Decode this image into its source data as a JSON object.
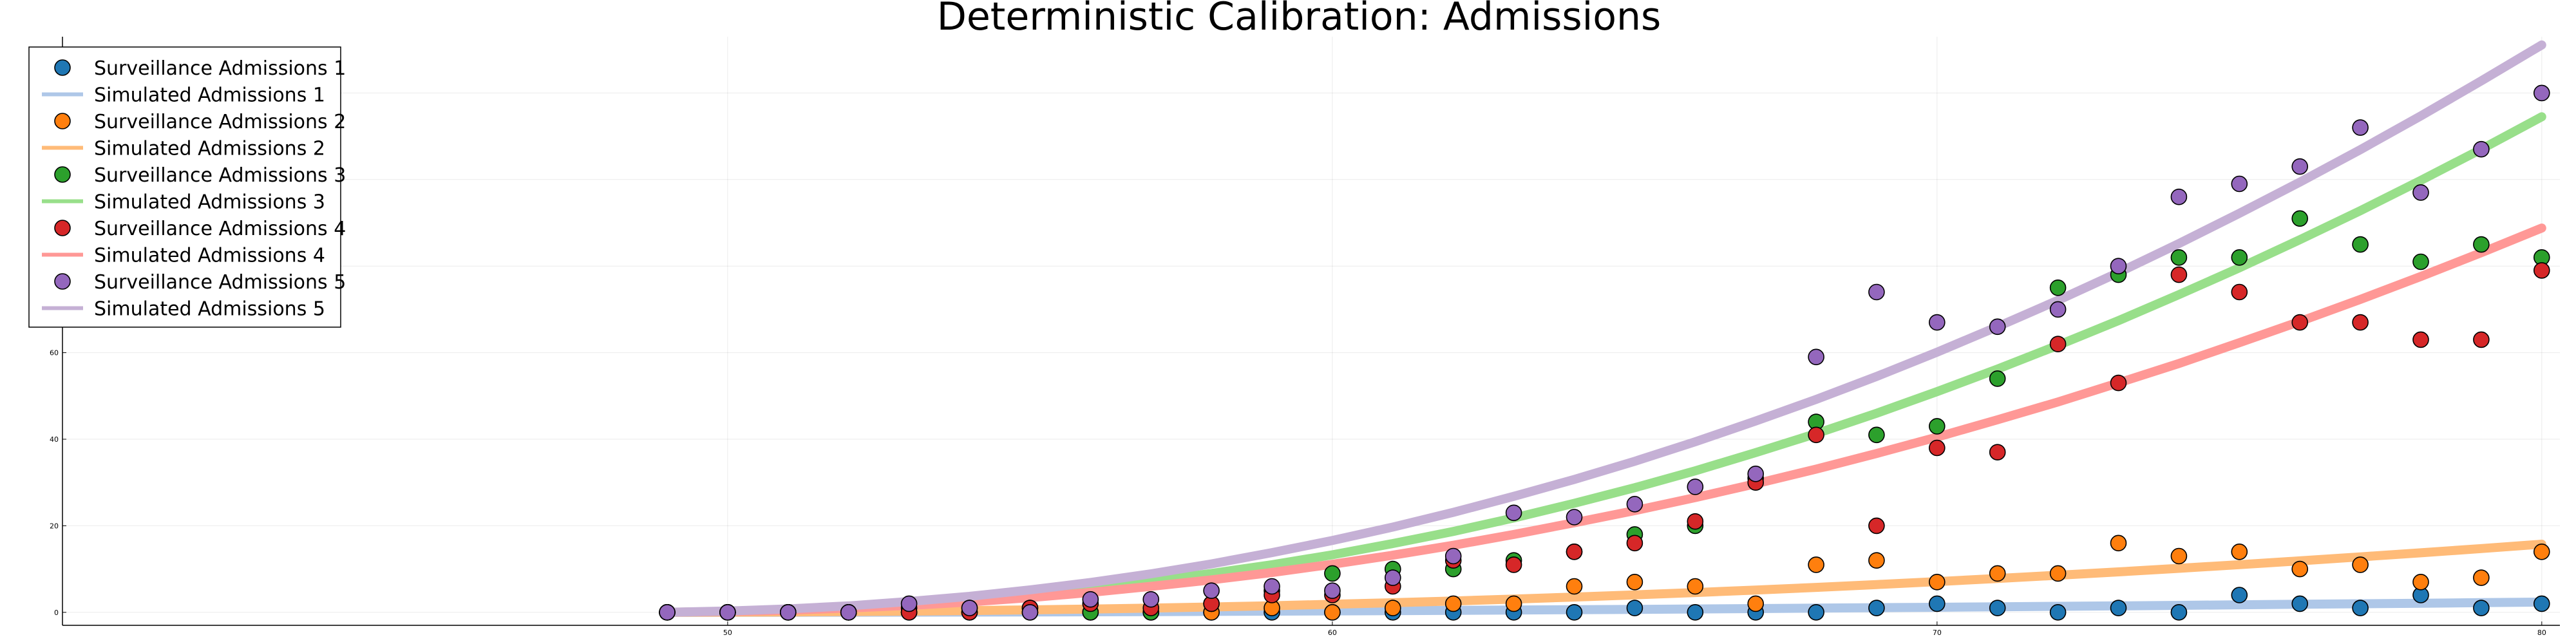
{
  "chart_data": {
    "type": "scatter",
    "title": "Deterministic Calibration: Admissions",
    "xlabel": "",
    "ylabel": "",
    "xlim": [
      39,
      80.3
    ],
    "ylim": [
      -3,
      133
    ],
    "x_ticks": [
      50,
      60,
      70,
      80
    ],
    "y_ticks": [
      0,
      20,
      40,
      60,
      80,
      100,
      120
    ],
    "grid": true,
    "legend_position": "top-left",
    "x": [
      49,
      50,
      51,
      52,
      53,
      54,
      55,
      56,
      57,
      58,
      59,
      60,
      61,
      62,
      63,
      64,
      65,
      66,
      67,
      68,
      69,
      70,
      71,
      72,
      73,
      74,
      75,
      76,
      77,
      78,
      79,
      80
    ],
    "series": [
      {
        "name": "Surveillance Admissions 1",
        "kind": "scatter",
        "color": "#1f77b4",
        "y": [
          0,
          0,
          0,
          0,
          0,
          0,
          0,
          0,
          0,
          0,
          0,
          0,
          0,
          0,
          0,
          0,
          1,
          0,
          0,
          0,
          1,
          2,
          1,
          0,
          1,
          0,
          4,
          2,
          1,
          4,
          1,
          2
        ]
      },
      {
        "name": "Simulated Admissions 1",
        "kind": "line",
        "color": "#aec7e8",
        "y": [
          0,
          0.01,
          0.02,
          0.03,
          0.05,
          0.07,
          0.1,
          0.13,
          0.17,
          0.22,
          0.27,
          0.33,
          0.39,
          0.46,
          0.53,
          0.61,
          0.69,
          0.78,
          0.87,
          0.97,
          1.07,
          1.17,
          1.28,
          1.39,
          1.5,
          1.62,
          1.74,
          1.86,
          1.98,
          2.11,
          2.24,
          2.37
        ]
      },
      {
        "name": "Surveillance Admissions 2",
        "kind": "scatter",
        "color": "#ff7f0e",
        "y": [
          0,
          0,
          0,
          0,
          0,
          1,
          0,
          0,
          0,
          0,
          1,
          0,
          1,
          2,
          2,
          6,
          7,
          6,
          2,
          11,
          12,
          7,
          9,
          9,
          16,
          13,
          14,
          10,
          11,
          7,
          8,
          14
        ]
      },
      {
        "name": "Simulated Admissions 2",
        "kind": "line",
        "color": "#ffbb78",
        "y": [
          0,
          0.05,
          0.1,
          0.18,
          0.28,
          0.41,
          0.57,
          0.76,
          0.98,
          1.24,
          1.53,
          1.86,
          2.22,
          2.62,
          3.06,
          3.53,
          4.04,
          4.58,
          5.16,
          5.77,
          6.42,
          7.1,
          7.82,
          8.57,
          9.35,
          10.17,
          11.02,
          11.9,
          12.82,
          13.76,
          14.74,
          15.75
        ]
      },
      {
        "name": "Surveillance Admissions 3",
        "kind": "scatter",
        "color": "#2ca02c",
        "y": [
          0,
          0,
          0,
          0,
          1,
          0,
          1,
          0,
          0,
          2,
          5,
          9,
          10,
          10,
          12,
          14,
          18,
          20,
          31,
          44,
          41,
          43,
          54,
          75,
          78,
          82,
          82,
          91,
          85,
          81,
          85,
          82
        ]
      },
      {
        "name": "Simulated Admissions 3",
        "kind": "line",
        "color": "#98df8a",
        "y": [
          0,
          0.2,
          0.6,
          1.2,
          2.0,
          3.0,
          4.2,
          5.6,
          7.2,
          9.0,
          11.0,
          13.3,
          15.9,
          18.7,
          21.8,
          25.2,
          28.8,
          32.7,
          36.9,
          41.3,
          46.0,
          51.0,
          56.2,
          61.7,
          67.4,
          73.4,
          79.6,
          86.1,
          92.8,
          99.8,
          107.0,
          114.5
        ]
      },
      {
        "name": "Surveillance Admissions 4",
        "kind": "scatter",
        "color": "#d62728",
        "y": [
          0,
          0,
          0,
          0,
          0,
          0,
          1,
          2,
          1,
          2,
          4,
          4,
          6,
          12,
          11,
          14,
          16,
          21,
          30,
          41,
          20,
          38,
          37,
          62,
          53,
          78,
          74,
          67,
          67,
          63,
          63,
          79
        ]
      },
      {
        "name": "Simulated Admissions 4",
        "kind": "line",
        "color": "#ff9896",
        "y": [
          0,
          0.2,
          0.5,
          1.0,
          1.6,
          2.4,
          3.4,
          4.6,
          6.0,
          7.5,
          9.2,
          11.1,
          13.2,
          15.5,
          18.0,
          20.7,
          23.5,
          26.5,
          29.7,
          33.1,
          36.7,
          40.5,
          44.5,
          48.6,
          53.0,
          57.5,
          62.3,
          67.2,
          72.3,
          77.6,
          83.1,
          88.8
        ]
      },
      {
        "name": "Surveillance Admissions 5",
        "kind": "scatter",
        "color": "#9467bd",
        "y": [
          0,
          0,
          0,
          0,
          2,
          1,
          0,
          3,
          3,
          5,
          6,
          5,
          8,
          13,
          23,
          22,
          25,
          29,
          32,
          59,
          74,
          67,
          66,
          70,
          80,
          96,
          99,
          103,
          112,
          97,
          107,
          120
        ]
      },
      {
        "name": "Simulated Admissions 5",
        "kind": "line",
        "color": "#c5b0d5",
        "y": [
          0,
          0.3,
          0.8,
          1.5,
          2.5,
          3.7,
          5.2,
          6.9,
          8.9,
          11.2,
          13.8,
          16.6,
          19.7,
          23.1,
          26.8,
          30.7,
          34.9,
          39.4,
          44.2,
          49.2,
          54.5,
          60.1,
          66.0,
          72.1,
          78.5,
          85.2,
          92.2,
          99.4,
          106.9,
          114.7,
          122.8,
          131.1
        ]
      }
    ]
  }
}
